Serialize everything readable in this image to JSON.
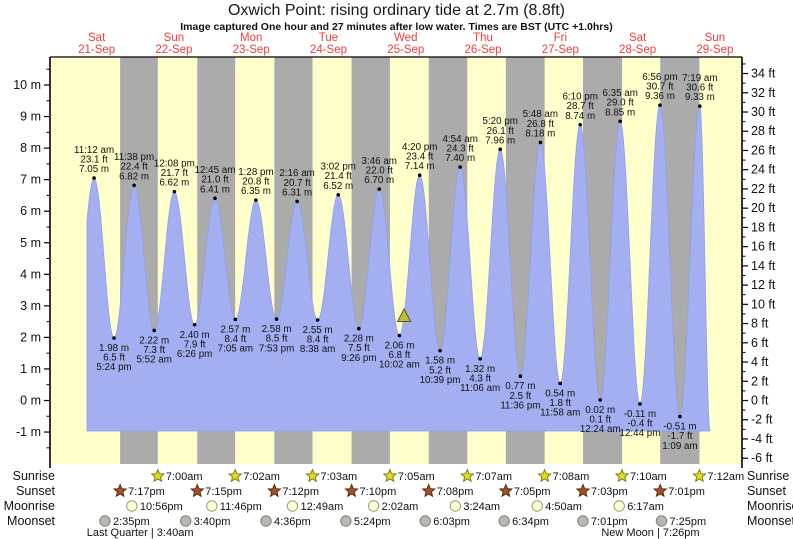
{
  "header": {
    "title": "Oxwich Point: rising  ordinary tide at 2.7m (8.8ft)",
    "subtitle": "Image captured One hour and 27 minutes after low water. Times are BST (UTC +1.0hrs)"
  },
  "chart_data": {
    "type": "area",
    "x_unit": "hours since Sat 21-Sep 00:00",
    "days": [
      {
        "label": "Sat",
        "date": "21-Sep",
        "noon_t": 12
      },
      {
        "label": "Sun",
        "date": "22-Sep",
        "noon_t": 36
      },
      {
        "label": "Mon",
        "date": "23-Sep",
        "noon_t": 60
      },
      {
        "label": "Tue",
        "date": "24-Sep",
        "noon_t": 84
      },
      {
        "label": "Wed",
        "date": "25-Sep",
        "noon_t": 108
      },
      {
        "label": "Thu",
        "date": "26-Sep",
        "noon_t": 132
      },
      {
        "label": "Fri",
        "date": "27-Sep",
        "noon_t": 156
      },
      {
        "label": "Sat",
        "date": "28-Sep",
        "noon_t": 180
      },
      {
        "label": "Sun",
        "date": "29-Sep",
        "noon_t": 204
      }
    ],
    "y_axis_left": {
      "unit": "m",
      "ticks": [
        10,
        9,
        8,
        7,
        6,
        5,
        4,
        3,
        2,
        1,
        0,
        -1
      ]
    },
    "y_axis_right": {
      "unit": "ft",
      "ticks": [
        34,
        32,
        30,
        28,
        26,
        24,
        22,
        20,
        18,
        16,
        14,
        12,
        10,
        8,
        6,
        4,
        2,
        0,
        -2,
        -4,
        -6
      ]
    },
    "high_tides": [
      {
        "t": 11.2,
        "v": 7.05,
        "time": "11:12 am",
        "ft": "23.1 ft",
        "m": "7.05 m"
      },
      {
        "t": 23.633,
        "v": 6.82,
        "time": "11:38 pm",
        "ft": "22.4 ft",
        "m": "6.82 m"
      },
      {
        "t": 36.133,
        "v": 6.62,
        "time": "12:08 pm",
        "ft": "21.7 ft",
        "m": "6.62 m"
      },
      {
        "t": 48.75,
        "v": 6.41,
        "time": "12:45 am",
        "ft": "21.0 ft",
        "m": "6.41 m"
      },
      {
        "t": 61.467,
        "v": 6.35,
        "time": "1:28 pm",
        "ft": "20.8 ft",
        "m": "6.35 m"
      },
      {
        "t": 74.267,
        "v": 6.31,
        "time": "2:16 am",
        "ft": "20.7 ft",
        "m": "6.31 m"
      },
      {
        "t": 87.033,
        "v": 6.52,
        "time": "3:02 pm",
        "ft": "21.4 ft",
        "m": "6.52 m"
      },
      {
        "t": 99.767,
        "v": 6.7,
        "time": "3:46 am",
        "ft": "22.0 ft",
        "m": "6.70 m"
      },
      {
        "t": 112.333,
        "v": 7.14,
        "time": "4:20 pm",
        "ft": "23.4 ft",
        "m": "7.14 m"
      },
      {
        "t": 124.9,
        "v": 7.4,
        "time": "4:54 am",
        "ft": "24.3 ft",
        "m": "7.40 m"
      },
      {
        "t": 137.333,
        "v": 7.96,
        "time": "5:20 pm",
        "ft": "26.1 ft",
        "m": "7.96 m"
      },
      {
        "t": 149.8,
        "v": 8.18,
        "time": "5:48 am",
        "ft": "26.8 ft",
        "m": "8.18 m"
      },
      {
        "t": 162.167,
        "v": 8.74,
        "time": "6:10 pm",
        "ft": "28.7 ft",
        "m": "8.74 m"
      },
      {
        "t": 174.583,
        "v": 8.85,
        "time": "6:35 am",
        "ft": "29.0 ft",
        "m": "8.85 m"
      },
      {
        "t": 186.933,
        "v": 9.36,
        "time": "6:56 pm",
        "ft": "30.7 ft",
        "m": "9.36 m"
      },
      {
        "t": 199.317,
        "v": 9.33,
        "time": "7:19 am",
        "ft": "30.6 ft",
        "m": "9.33 m"
      }
    ],
    "low_tides": [
      {
        "t": 17.4,
        "v": 1.98,
        "m": "1.98 m",
        "ft": "6.5 ft",
        "time": "5:24 pm"
      },
      {
        "t": 29.867,
        "v": 2.22,
        "m": "2.22 m",
        "ft": "7.3 ft",
        "time": "5:52 am"
      },
      {
        "t": 42.433,
        "v": 2.4,
        "m": "2.40 m",
        "ft": "7.9 ft",
        "time": "6:26 pm"
      },
      {
        "t": 55.083,
        "v": 2.57,
        "m": "2.57 m",
        "ft": "8.4 ft",
        "time": "7:05 am"
      },
      {
        "t": 67.883,
        "v": 2.58,
        "m": "2.58 m",
        "ft": "8.5 ft",
        "time": "7:53 pm"
      },
      {
        "t": 80.633,
        "v": 2.55,
        "m": "2.55 m",
        "ft": "8.4 ft",
        "time": "8:38 am"
      },
      {
        "t": 93.433,
        "v": 2.28,
        "m": "2.28 m",
        "ft": "7.5 ft",
        "time": "9:26 pm"
      },
      {
        "t": 106.033,
        "v": 2.06,
        "m": "2.06 m",
        "ft": "6.8 ft",
        "time": "10:02 am"
      },
      {
        "t": 118.65,
        "v": 1.58,
        "m": "1.58 m",
        "ft": "5.2 ft",
        "time": "10:39 pm"
      },
      {
        "t": 131.1,
        "v": 1.32,
        "m": "1.32 m",
        "ft": "4.3 ft",
        "time": "11:06 am"
      },
      {
        "t": 143.6,
        "v": 0.77,
        "m": "0.77 m",
        "ft": "2.5 ft",
        "time": "11:36 pm"
      },
      {
        "t": 155.967,
        "v": 0.54,
        "m": "0.54 m",
        "ft": "1.8 ft",
        "time": "11:58 am"
      },
      {
        "t": 168.4,
        "v": 0.02,
        "m": "0.02 m",
        "ft": "0.1 ft",
        "time": "12:24 am"
      },
      {
        "t": 180.733,
        "v": -0.11,
        "m": "-0.11 m",
        "ft": "-0.4 ft",
        "time": "12:44 pm"
      },
      {
        "t": 193.15,
        "v": -0.51,
        "m": "-0.51 m",
        "ft": "-1.7 ft",
        "time": "1:09 am"
      }
    ],
    "curve_start": {
      "t": 9.0,
      "v": 5.66
    },
    "curve_end": {
      "t": 202.6,
      "v": -1.1
    },
    "virtual_prev_low": {
      "t": 4.8,
      "v": 1.9
    },
    "now_marker": {
      "t": 107.483
    },
    "colors": {
      "day_band": "#ffffcc",
      "night_band": "#ababab",
      "water": "#a4aff2",
      "water_edge": "#8f9fee",
      "day_label": "#f23b3b",
      "annotation": "#111111",
      "sunrise_star": "#dede29",
      "sunrise_star_edge": "#7d7d14",
      "sunset_star": "#a0522d",
      "sunset_star_edge": "#5e2d08",
      "moonrise_circle": "#ffffd6",
      "moonrise_circle_edge": "#9a9a78",
      "moonset_circle": "#b8b8b0",
      "moonset_circle_edge": "#80807a",
      "now_marker": "#bcbf3a",
      "now_marker_edge": "#55551c",
      "axis": "#000000"
    }
  },
  "almanac": {
    "row_labels": {
      "sunrise": "Sunrise",
      "sunset": "Sunset",
      "moonrise": "Moonrise",
      "moonset": "Moonset"
    },
    "sunrise": [
      {
        "t": 31.0,
        "time": "7:00am"
      },
      {
        "t": 55.033,
        "time": "7:02am"
      },
      {
        "t": 79.05,
        "time": "7:03am"
      },
      {
        "t": 103.083,
        "time": "7:05am"
      },
      {
        "t": 127.117,
        "time": "7:07am"
      },
      {
        "t": 151.133,
        "time": "7:08am"
      },
      {
        "t": 175.167,
        "time": "7:10am"
      },
      {
        "t": 199.2,
        "time": "7:12am"
      }
    ],
    "sunset": [
      {
        "t": 19.283,
        "time": "7:17pm"
      },
      {
        "t": 43.25,
        "time": "7:15pm"
      },
      {
        "t": 67.2,
        "time": "7:12pm"
      },
      {
        "t": 91.167,
        "time": "7:10pm"
      },
      {
        "t": 115.133,
        "time": "7:08pm"
      },
      {
        "t": 139.083,
        "time": "7:05pm"
      },
      {
        "t": 163.05,
        "time": "7:03pm"
      },
      {
        "t": 187.017,
        "time": "7:01pm"
      }
    ],
    "moonrise": [
      {
        "t": 22.933,
        "time": "10:56pm"
      },
      {
        "t": 47.767,
        "time": "11:46pm"
      },
      {
        "t": 72.817,
        "time": "12:49am"
      },
      {
        "t": 98.033,
        "time": "2:02am"
      },
      {
        "t": 123.4,
        "time": "3:24am"
      },
      {
        "t": 148.833,
        "time": "4:50am"
      },
      {
        "t": 174.283,
        "time": "6:17am"
      }
    ],
    "moonset": [
      {
        "t": 14.583,
        "time": "2:35pm"
      },
      {
        "t": 39.667,
        "time": "3:40pm"
      },
      {
        "t": 64.6,
        "time": "4:36pm"
      },
      {
        "t": 89.4,
        "time": "5:24pm"
      },
      {
        "t": 114.05,
        "time": "6:03pm"
      },
      {
        "t": 138.567,
        "time": "6:34pm"
      },
      {
        "t": 163.017,
        "time": "7:01pm"
      },
      {
        "t": 187.417,
        "time": "7:25pm"
      }
    ],
    "moon_phases": [
      {
        "t": 25.5,
        "label": "Last Quarter | 3:40am"
      },
      {
        "t": 184.0,
        "label": "New Moon | 7:26pm"
      }
    ]
  }
}
